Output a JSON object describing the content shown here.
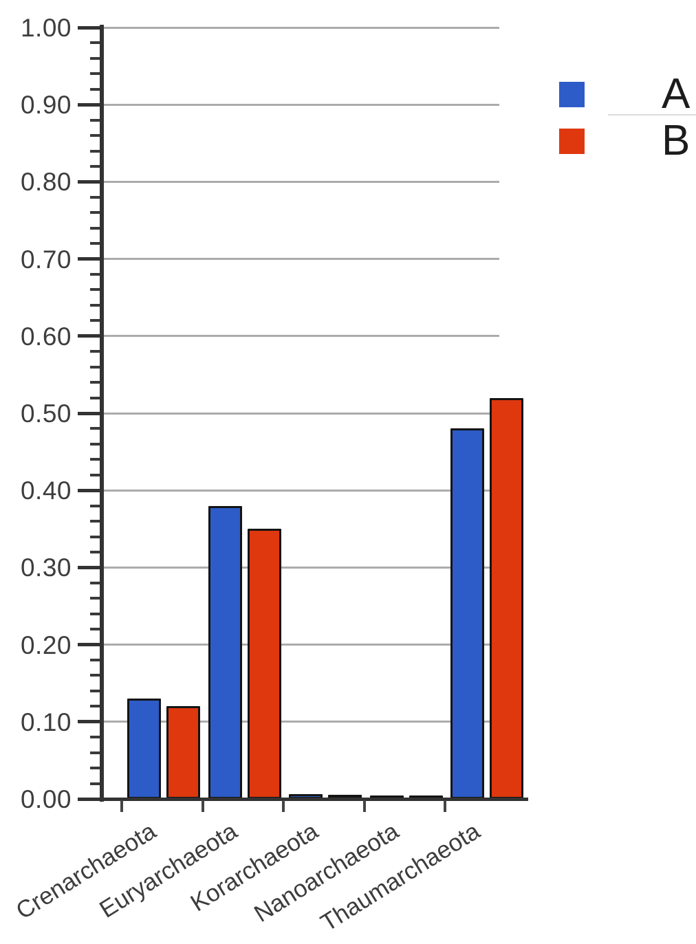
{
  "chart_data": {
    "type": "bar",
    "categories": [
      "Crenarchaeota",
      "Euryarchaeota",
      "Korarchaeota",
      "Nanoarchaeota",
      "Thaumarchaeota"
    ],
    "series": [
      {
        "name": "A",
        "color": "#2d5cc8",
        "values": [
          0.13,
          0.38,
          0.006,
          0.003,
          0.48
        ]
      },
      {
        "name": "B",
        "color": "#df380f",
        "values": [
          0.12,
          0.35,
          0.005,
          0.003,
          0.52
        ]
      }
    ],
    "ylim": [
      0,
      1
    ],
    "ytick_step": 0.1,
    "y_minor_tick_step": 0.02,
    "ytick_labels": [
      "0.00",
      "0.10",
      "0.20",
      "0.30",
      "0.40",
      "0.50",
      "0.60",
      "0.70",
      "0.80",
      "0.90",
      "1.00"
    ],
    "grid": true,
    "legend_position": "top-right"
  },
  "legend": {
    "items": [
      {
        "label": "A",
        "color": "#2d5cc8"
      },
      {
        "label": "B",
        "color": "#df380f"
      }
    ]
  },
  "colors": {
    "series_a": "#2d5cc8",
    "series_b": "#df380f",
    "gridline": "#ababab",
    "axis": "#333333",
    "axis_label_text": "#3d3d3d",
    "legend_text": "#1c1c1c",
    "bar_outline": "#141414",
    "background": "#ffffff"
  }
}
